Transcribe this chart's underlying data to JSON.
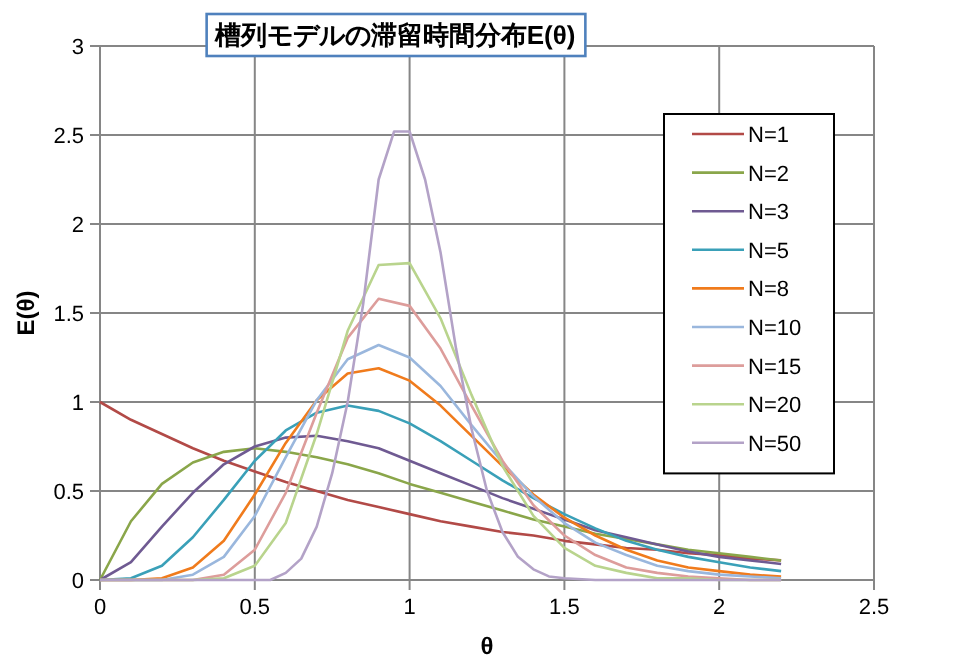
{
  "chart_data": {
    "type": "line",
    "title": "槽列モデルの滞留時間分布E(θ)",
    "xlabel": "θ",
    "ylabel": "E(θ)",
    "xlim": [
      0,
      2.5
    ],
    "ylim": [
      0,
      3
    ],
    "xticks": [
      0,
      0.5,
      1,
      1.5,
      2,
      2.5
    ],
    "yticks": [
      0,
      0.5,
      1,
      1.5,
      2,
      2.5,
      3
    ],
    "grid": true,
    "legend": "right",
    "series": [
      {
        "name": "N=1",
        "color": "#b24a47",
        "x": [
          0,
          0.1,
          0.2,
          0.3,
          0.4,
          0.5,
          0.6,
          0.7,
          0.8,
          0.9,
          1,
          1.1,
          1.2,
          1.3,
          1.4,
          1.5,
          1.6,
          1.7,
          1.8,
          1.9,
          2,
          2.1,
          2.2
        ],
        "values": [
          1,
          0.9,
          0.82,
          0.74,
          0.67,
          0.61,
          0.55,
          0.5,
          0.45,
          0.41,
          0.37,
          0.33,
          0.3,
          0.27,
          0.25,
          0.22,
          0.2,
          0.18,
          0.17,
          0.15,
          0.14,
          0.12,
          0.11
        ]
      },
      {
        "name": "N=2",
        "color": "#8aa64a",
        "x": [
          0,
          0.1,
          0.2,
          0.3,
          0.4,
          0.5,
          0.6,
          0.7,
          0.8,
          0.9,
          1,
          1.1,
          1.2,
          1.3,
          1.4,
          1.5,
          1.6,
          1.7,
          1.8,
          1.9,
          2,
          2.1,
          2.2
        ],
        "values": [
          0,
          0.33,
          0.54,
          0.66,
          0.72,
          0.74,
          0.72,
          0.69,
          0.65,
          0.6,
          0.54,
          0.49,
          0.44,
          0.39,
          0.34,
          0.3,
          0.26,
          0.23,
          0.2,
          0.17,
          0.15,
          0.13,
          0.11
        ]
      },
      {
        "name": "N=3",
        "color": "#6f5a92",
        "x": [
          0,
          0.1,
          0.2,
          0.3,
          0.4,
          0.5,
          0.6,
          0.7,
          0.8,
          0.9,
          1,
          1.1,
          1.2,
          1.3,
          1.4,
          1.5,
          1.6,
          1.7,
          1.8,
          1.9,
          2,
          2.1,
          2.2
        ],
        "values": [
          0,
          0.1,
          0.3,
          0.49,
          0.65,
          0.75,
          0.8,
          0.81,
          0.78,
          0.74,
          0.67,
          0.6,
          0.53,
          0.46,
          0.4,
          0.34,
          0.28,
          0.24,
          0.2,
          0.16,
          0.13,
          0.11,
          0.09
        ]
      },
      {
        "name": "N=5",
        "color": "#3aa0b8",
        "x": [
          0,
          0.1,
          0.2,
          0.3,
          0.4,
          0.5,
          0.6,
          0.7,
          0.8,
          0.9,
          1,
          1.1,
          1.2,
          1.3,
          1.4,
          1.5,
          1.6,
          1.7,
          1.8,
          1.9,
          2,
          2.1,
          2.2
        ],
        "values": [
          0,
          0.01,
          0.08,
          0.24,
          0.45,
          0.67,
          0.84,
          0.94,
          0.98,
          0.95,
          0.88,
          0.78,
          0.67,
          0.56,
          0.46,
          0.37,
          0.29,
          0.22,
          0.17,
          0.13,
          0.1,
          0.07,
          0.05
        ]
      },
      {
        "name": "N=8",
        "color": "#f07b1c",
        "x": [
          0,
          0.1,
          0.2,
          0.3,
          0.4,
          0.5,
          0.6,
          0.7,
          0.8,
          0.9,
          1,
          1.1,
          1.2,
          1.3,
          1.4,
          1.5,
          1.6,
          1.7,
          1.8,
          1.9,
          2,
          2.1,
          2.2
        ],
        "values": [
          0,
          0,
          0.01,
          0.07,
          0.22,
          0.48,
          0.77,
          1.01,
          1.16,
          1.19,
          1.12,
          0.98,
          0.81,
          0.64,
          0.48,
          0.35,
          0.25,
          0.17,
          0.11,
          0.07,
          0.05,
          0.03,
          0.02
        ]
      },
      {
        "name": "N=10",
        "color": "#9ab7dd",
        "x": [
          0,
          0.1,
          0.2,
          0.3,
          0.4,
          0.5,
          0.6,
          0.7,
          0.8,
          0.9,
          1,
          1.1,
          1.2,
          1.3,
          1.4,
          1.5,
          1.6,
          1.7,
          1.8,
          1.9,
          2,
          2.1,
          2.2
        ],
        "values": [
          0,
          0,
          0,
          0.03,
          0.13,
          0.36,
          0.69,
          1.01,
          1.24,
          1.32,
          1.25,
          1.09,
          0.87,
          0.66,
          0.47,
          0.32,
          0.21,
          0.14,
          0.08,
          0.05,
          0.03,
          0.02,
          0.01
        ]
      },
      {
        "name": "N=15",
        "color": "#dd9d9b",
        "x": [
          0,
          0.1,
          0.2,
          0.3,
          0.4,
          0.5,
          0.6,
          0.7,
          0.8,
          0.9,
          1,
          1.1,
          1.2,
          1.3,
          1.4,
          1.5,
          1.6,
          1.7,
          1.8,
          1.9,
          2,
          2.1,
          2.2
        ],
        "values": [
          0,
          0,
          0,
          0,
          0.03,
          0.17,
          0.49,
          0.94,
          1.36,
          1.58,
          1.54,
          1.3,
          0.98,
          0.67,
          0.42,
          0.25,
          0.14,
          0.07,
          0.04,
          0.02,
          0.01,
          0,
          0
        ]
      },
      {
        "name": "N=20",
        "color": "#b9d48d",
        "x": [
          0,
          0.1,
          0.2,
          0.3,
          0.4,
          0.5,
          0.6,
          0.7,
          0.8,
          0.9,
          1,
          1.1,
          1.2,
          1.3,
          1.4,
          1.5,
          1.6,
          1.7,
          1.8,
          1.9,
          2,
          2.1,
          2.2
        ],
        "values": [
          0,
          0,
          0,
          0,
          0.01,
          0.08,
          0.32,
          0.82,
          1.4,
          1.77,
          1.78,
          1.47,
          1.04,
          0.64,
          0.36,
          0.18,
          0.08,
          0.04,
          0.01,
          0.01,
          0,
          0,
          0
        ]
      },
      {
        "name": "N=50",
        "color": "#b3a2c7",
        "x": [
          0,
          0.1,
          0.2,
          0.3,
          0.4,
          0.5,
          0.55,
          0.6,
          0.65,
          0.7,
          0.75,
          0.8,
          0.85,
          0.9,
          0.95,
          1,
          1.05,
          1.1,
          1.15,
          1.2,
          1.25,
          1.3,
          1.35,
          1.4,
          1.45,
          1.5,
          1.6,
          1.7,
          1.8,
          1.9,
          2,
          2.1,
          2.2
        ],
        "values": [
          0,
          0,
          0,
          0,
          0,
          0,
          0,
          0.04,
          0.12,
          0.3,
          0.6,
          1,
          1.55,
          2.25,
          2.52,
          2.52,
          2.25,
          1.84,
          1.3,
          0.85,
          0.5,
          0.27,
          0.13,
          0.06,
          0.02,
          0.01,
          0,
          0,
          0,
          0,
          0,
          0,
          0
        ]
      }
    ]
  }
}
